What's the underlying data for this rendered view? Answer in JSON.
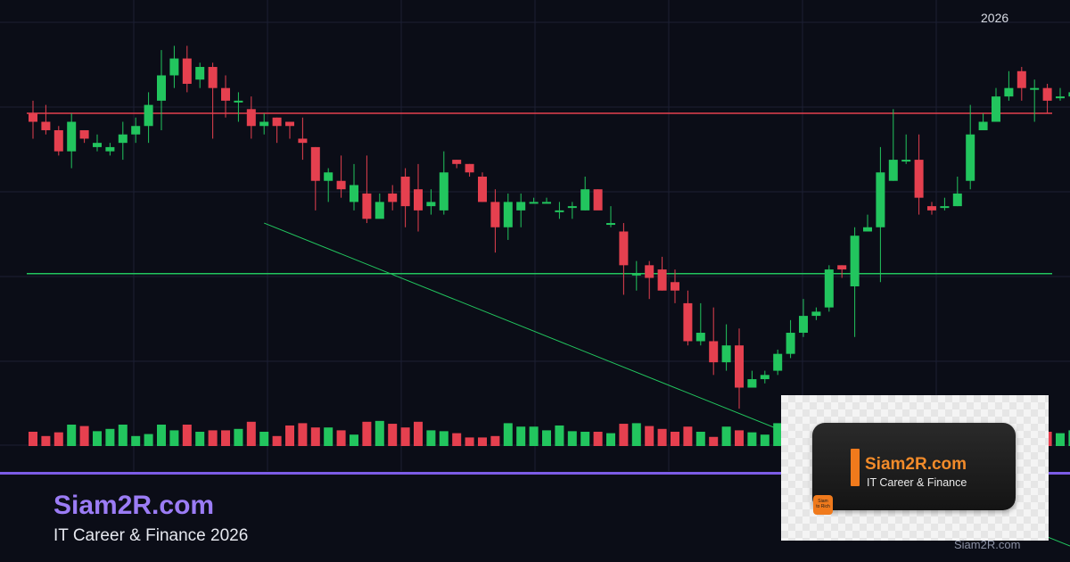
{
  "chart_data": {
    "type": "candlestick",
    "title": "",
    "year_label": "2026",
    "ylim": [
      0,
      100
    ],
    "colors": {
      "up": "#22c55e",
      "down": "#e5404f",
      "resistance": "#e5404f",
      "support": "#22c55e",
      "trend": "#22c55e",
      "grid": "#1c2033"
    },
    "resistance_level": 78,
    "support_level": 40,
    "trendline": [
      [
        18,
        52
      ],
      [
        59,
        2
      ]
    ],
    "candles": [
      [
        78,
        76,
        81,
        72
      ],
      [
        76,
        74,
        80,
        73
      ],
      [
        74,
        69,
        75,
        68
      ],
      [
        69,
        76,
        78,
        65
      ],
      [
        74,
        72,
        74,
        71
      ],
      [
        70,
        71,
        73,
        69
      ],
      [
        69,
        70,
        71,
        68
      ],
      [
        71,
        73,
        76,
        67
      ],
      [
        73,
        75,
        77,
        71
      ],
      [
        75,
        80,
        83,
        71
      ],
      [
        81,
        87,
        93,
        74
      ],
      [
        87,
        91,
        94,
        84
      ],
      [
        91,
        85,
        94,
        83
      ],
      [
        86,
        89,
        90,
        84
      ],
      [
        89,
        84,
        90,
        72
      ],
      [
        84,
        81,
        87,
        77
      ],
      [
        81,
        81,
        83,
        76
      ],
      [
        79,
        75,
        82,
        72
      ],
      [
        75,
        76,
        78,
        73
      ],
      [
        77,
        75,
        77,
        71
      ],
      [
        76,
        75,
        76,
        72
      ],
      [
        72,
        71,
        77,
        67
      ],
      [
        70,
        62,
        70,
        55
      ],
      [
        62,
        64,
        65,
        57
      ],
      [
        62,
        60,
        68,
        58
      ],
      [
        57,
        61,
        66,
        55
      ],
      [
        59,
        53,
        68,
        52
      ],
      [
        53,
        57,
        59,
        54
      ],
      [
        59,
        57,
        61,
        55
      ],
      [
        63,
        56,
        65,
        51
      ],
      [
        60,
        55,
        66,
        50
      ],
      [
        56,
        57,
        60,
        54
      ],
      [
        55,
        64,
        69,
        54
      ],
      [
        67,
        66,
        67,
        65
      ],
      [
        66,
        64,
        66,
        63
      ],
      [
        63,
        57,
        64,
        57
      ],
      [
        57,
        51,
        60,
        45
      ],
      [
        51,
        57,
        59,
        48
      ],
      [
        55,
        57,
        59,
        51
      ],
      [
        57,
        57,
        58,
        57
      ],
      [
        57,
        57,
        58,
        57
      ],
      [
        55,
        55,
        57,
        53
      ],
      [
        56,
        56,
        57,
        53
      ],
      [
        55,
        60,
        63,
        55
      ],
      [
        60,
        55,
        60,
        56
      ],
      [
        52,
        52,
        56,
        51
      ],
      [
        50,
        42,
        52,
        35
      ],
      [
        40,
        40,
        43,
        36
      ],
      [
        42,
        39,
        43,
        34
      ],
      [
        41,
        36,
        44,
        36
      ],
      [
        38,
        36,
        41,
        33
      ],
      [
        33,
        24,
        36,
        23
      ],
      [
        24,
        26,
        33,
        23
      ],
      [
        24,
        19,
        32,
        16
      ],
      [
        19,
        23,
        28,
        17
      ],
      [
        23,
        13,
        27,
        8
      ],
      [
        13,
        15,
        17,
        13
      ],
      [
        15,
        16,
        17,
        14
      ],
      [
        17,
        21,
        22,
        16
      ],
      [
        21,
        26,
        29,
        20
      ],
      [
        26,
        30,
        34,
        25
      ],
      [
        30,
        31,
        32,
        29
      ],
      [
        32,
        41,
        42,
        31
      ],
      [
        42,
        41,
        42,
        39
      ],
      [
        37,
        49,
        51,
        25
      ],
      [
        50,
        51,
        54,
        50
      ],
      [
        51,
        64,
        70,
        38
      ],
      [
        62,
        67,
        79,
        62
      ],
      [
        67,
        67,
        73,
        66
      ],
      [
        67,
        58,
        73,
        54
      ],
      [
        56,
        55,
        57,
        54
      ],
      [
        56,
        56,
        58,
        55
      ],
      [
        56,
        59,
        63,
        56
      ],
      [
        62,
        73,
        80,
        60
      ],
      [
        74,
        76,
        78,
        74
      ],
      [
        76,
        82,
        84,
        76
      ],
      [
        82,
        84,
        88,
        81
      ],
      [
        88,
        84,
        89,
        81
      ],
      [
        84,
        84,
        86,
        76
      ],
      [
        84,
        81,
        85,
        78
      ],
      [
        82,
        82,
        84,
        81
      ],
      [
        82,
        83,
        84,
        82
      ]
    ],
    "volumes": [
      0.5,
      0.35,
      0.48,
      0.75,
      0.7,
      0.52,
      0.6,
      0.75,
      0.35,
      0.42,
      0.75,
      0.55,
      0.75,
      0.5,
      0.55,
      0.55,
      0.6,
      0.85,
      0.5,
      0.35,
      0.72,
      0.8,
      0.65,
      0.65,
      0.55,
      0.4,
      0.85,
      0.88,
      0.78,
      0.65,
      0.85,
      0.55,
      0.52,
      0.45,
      0.3,
      0.3,
      0.35,
      0.8,
      0.68,
      0.68,
      0.55,
      0.72,
      0.52,
      0.5,
      0.5,
      0.45,
      0.78,
      0.8,
      0.7,
      0.6,
      0.5,
      0.68,
      0.5,
      0.32,
      0.68,
      0.55,
      0.48,
      0.4,
      0.8,
      0.65,
      0.85,
      0.55,
      0.6,
      0.55,
      0.4,
      0.6,
      0.75,
      0.55,
      0.75,
      0.45,
      0.55,
      0.5,
      0.65,
      0.78,
      0.82,
      0.65,
      0.55,
      0.5,
      0.6,
      0.5,
      0.45,
      0.55
    ]
  },
  "footer": {
    "brand_name": "Siam2R.com",
    "subtitle": "IT Career & Finance 2026"
  },
  "logo": {
    "name": "Siam2R.com",
    "tagline": "IT Career & Finance",
    "badge_line1": "Siam",
    "badge_line2": "to Rich",
    "accent": "#f07a1c"
  },
  "watermark": "Siam2R.com"
}
